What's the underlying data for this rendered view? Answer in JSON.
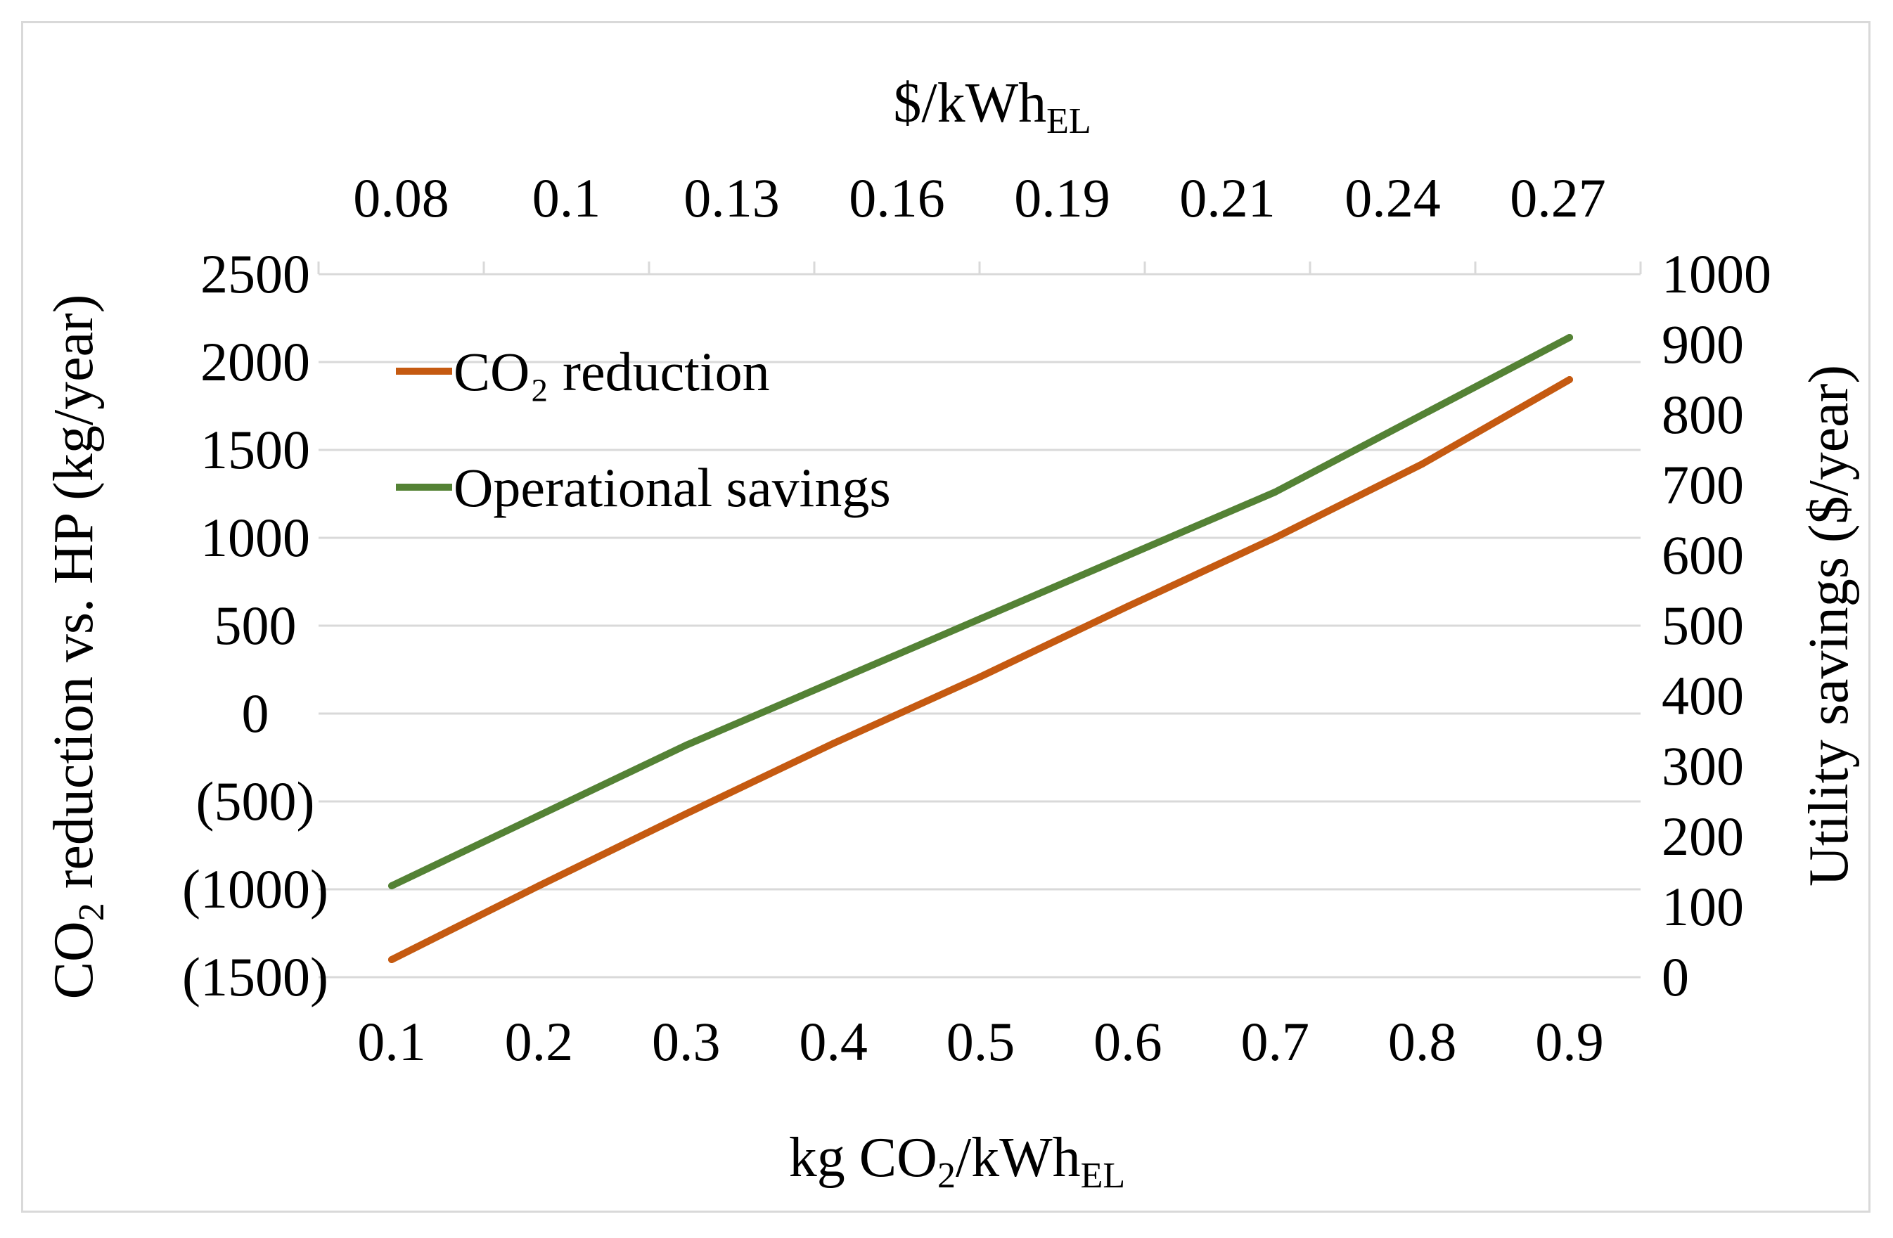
{
  "chart_data": {
    "type": "line",
    "title": "",
    "x_bottom": {
      "label_parts": [
        {
          "text": "kg CO",
          "sub": false
        },
        {
          "text": "2",
          "sub": true
        },
        {
          "text": "/kWh",
          "sub": false
        },
        {
          "text": "EL",
          "sub": true
        }
      ],
      "ticks": [
        "0.1",
        "0.2",
        "0.3",
        "0.4",
        "0.5",
        "0.6",
        "0.7",
        "0.8",
        "0.9"
      ],
      "range": [
        0.1,
        0.9
      ]
    },
    "x_top": {
      "label_parts": [
        {
          "text": "$/kWh",
          "sub": false
        },
        {
          "text": "EL",
          "sub": true
        }
      ],
      "ticks": [
        "0.08",
        "0.1",
        "0.13",
        "0.16",
        "0.19",
        "0.21",
        "0.24",
        "0.27"
      ]
    },
    "y_left": {
      "label_parts": [
        {
          "text": "CO",
          "sub": false
        },
        {
          "text": "2",
          "sub": true
        },
        {
          "text": " reduction vs. HP (kg/year)",
          "sub": false
        }
      ],
      "ticks": [
        "2500",
        "2000",
        "1500",
        "1000",
        "500",
        "0",
        "(500)",
        "(1000)",
        "(1500)"
      ],
      "range": [
        -1500,
        2500
      ]
    },
    "y_right": {
      "label": "Utility savings ($/year)",
      "ticks": [
        "1000",
        "900",
        "800",
        "700",
        "600",
        "500",
        "400",
        "300",
        "200",
        "100",
        "0"
      ],
      "range": [
        0,
        1000
      ]
    },
    "grid": true,
    "legend_position": "top-left",
    "series": [
      {
        "name": "CO₂ reduction",
        "color": "#c55a11",
        "axis": "left",
        "x": [
          0.1,
          0.2,
          0.3,
          0.4,
          0.5,
          0.6,
          0.7,
          0.8,
          0.9
        ],
        "values": [
          -1400,
          -980,
          -570,
          -170,
          210,
          610,
          1000,
          1420,
          1900
        ]
      },
      {
        "name": "Operational savings",
        "color": "#548235",
        "axis": "right",
        "x": [
          0.1,
          0.2,
          0.3,
          0.4,
          0.5,
          0.6,
          0.7,
          0.8,
          0.9
        ],
        "values": [
          130,
          230,
          330,
          420,
          510,
          600,
          690,
          800,
          910
        ]
      }
    ]
  }
}
